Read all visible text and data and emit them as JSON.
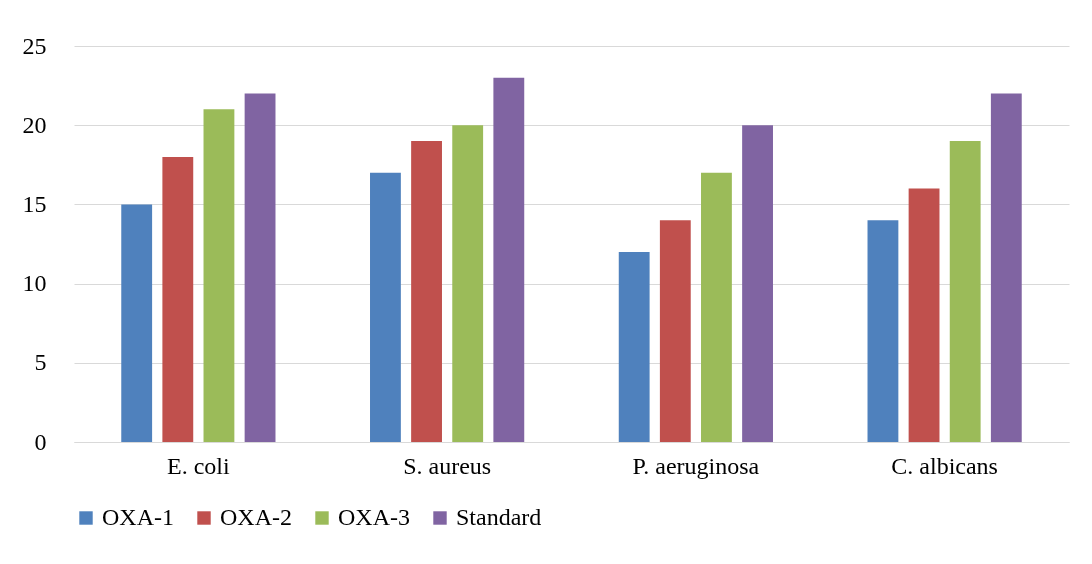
{
  "chart_data": {
    "type": "bar",
    "categories": [
      "E. coli",
      "S. aureus",
      "P. aeruginosa",
      "C. albicans"
    ],
    "series": [
      {
        "name": "OXA-1",
        "color": "#4f81bd",
        "values": [
          15,
          17,
          12,
          14
        ]
      },
      {
        "name": "OXA-2",
        "color": "#c0504d",
        "values": [
          18,
          19,
          14,
          16
        ]
      },
      {
        "name": "OXA-3",
        "color": "#9bbb59",
        "values": [
          21,
          20,
          17,
          19
        ]
      },
      {
        "name": "Standard",
        "color": "#8064a2",
        "values": [
          22,
          23,
          20,
          22
        ]
      }
    ],
    "ylim": [
      0,
      25
    ],
    "yticks": [
      0,
      5,
      10,
      15,
      20,
      25
    ],
    "grid": "y",
    "legend": "bottom"
  }
}
